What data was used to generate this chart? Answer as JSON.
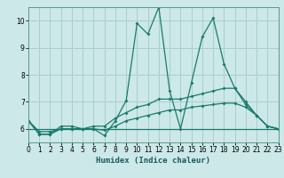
{
  "xlabel": "Humidex (Indice chaleur)",
  "xlim": [
    0,
    23
  ],
  "ylim": [
    5.5,
    10.5
  ],
  "yticks": [
    6,
    7,
    8,
    9,
    10
  ],
  "xticks": [
    0,
    1,
    2,
    3,
    4,
    5,
    6,
    7,
    8,
    9,
    10,
    11,
    12,
    13,
    14,
    15,
    16,
    17,
    18,
    19,
    20,
    21,
    22,
    23
  ],
  "bg_color": "#cce8e8",
  "line_color": "#1a7a6a",
  "grid_color": "#aacece",
  "lines": [
    {
      "x": [
        0,
        1,
        2,
        3,
        4,
        5,
        6,
        7,
        8,
        9,
        10,
        11,
        12,
        13,
        14,
        15,
        16,
        17,
        18,
        19,
        20,
        21,
        22,
        23
      ],
      "y": [
        6.3,
        5.8,
        5.8,
        6.1,
        6.1,
        6.0,
        6.0,
        5.75,
        6.3,
        7.05,
        9.9,
        9.5,
        10.5,
        7.4,
        6.0,
        7.7,
        9.4,
        10.1,
        8.4,
        7.5,
        6.9,
        6.5,
        6.1,
        6.0
      ]
    },
    {
      "x": [
        0,
        1,
        2,
        3,
        4,
        5,
        6,
        7,
        8,
        9,
        10,
        11,
        12,
        13,
        14,
        15,
        16,
        17,
        18,
        19,
        20,
        21,
        22,
        23
      ],
      "y": [
        6.3,
        5.8,
        5.8,
        6.0,
        6.0,
        6.0,
        6.1,
        6.1,
        6.4,
        6.6,
        6.8,
        6.9,
        7.1,
        7.1,
        7.1,
        7.2,
        7.3,
        7.4,
        7.5,
        7.5,
        7.0,
        6.5,
        6.1,
        6.0
      ]
    },
    {
      "x": [
        0,
        1,
        2,
        3,
        4,
        5,
        6,
        7,
        8,
        9,
        10,
        11,
        12,
        13,
        14,
        15,
        16,
        17,
        18,
        19,
        20,
        21,
        22,
        23
      ],
      "y": [
        6.3,
        5.9,
        5.9,
        6.0,
        6.0,
        6.0,
        6.0,
        5.95,
        6.1,
        6.3,
        6.4,
        6.5,
        6.6,
        6.7,
        6.7,
        6.8,
        6.85,
        6.9,
        6.95,
        6.95,
        6.8,
        6.5,
        6.1,
        6.0
      ]
    },
    {
      "x": [
        0,
        23
      ],
      "y": [
        6.0,
        6.0
      ]
    }
  ]
}
